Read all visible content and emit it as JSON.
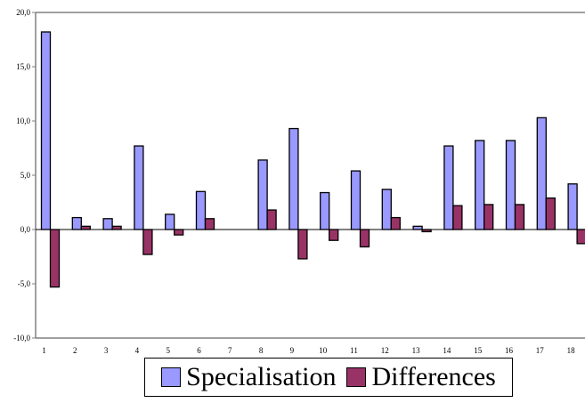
{
  "chart_data": {
    "type": "bar",
    "categories": [
      "1",
      "2",
      "3",
      "4",
      "5",
      "6",
      "7",
      "8",
      "9",
      "10",
      "11",
      "12",
      "13",
      "14",
      "15",
      "16",
      "17",
      "18"
    ],
    "series": [
      {
        "name": "Specialisation",
        "color": "#9999ff",
        "values": [
          18.2,
          1.1,
          1.0,
          7.7,
          1.4,
          3.5,
          0.0,
          6.4,
          9.3,
          3.4,
          5.4,
          3.7,
          0.3,
          7.7,
          8.2,
          8.2,
          10.3,
          4.2
        ]
      },
      {
        "name": "Differences",
        "color": "#993366",
        "values": [
          -5.3,
          0.3,
          0.3,
          -2.3,
          -0.5,
          1.0,
          0.0,
          1.8,
          -2.7,
          -1.0,
          -1.6,
          1.1,
          -0.2,
          2.2,
          2.3,
          2.3,
          2.9,
          -1.3
        ]
      }
    ],
    "yticks": [
      "20,0",
      "15,0",
      "10,0",
      "5,0",
      "0,0",
      "-5,0",
      "-10,0"
    ],
    "ylim": [
      -10,
      20
    ],
    "grid": false,
    "legend_position": "bottom"
  }
}
